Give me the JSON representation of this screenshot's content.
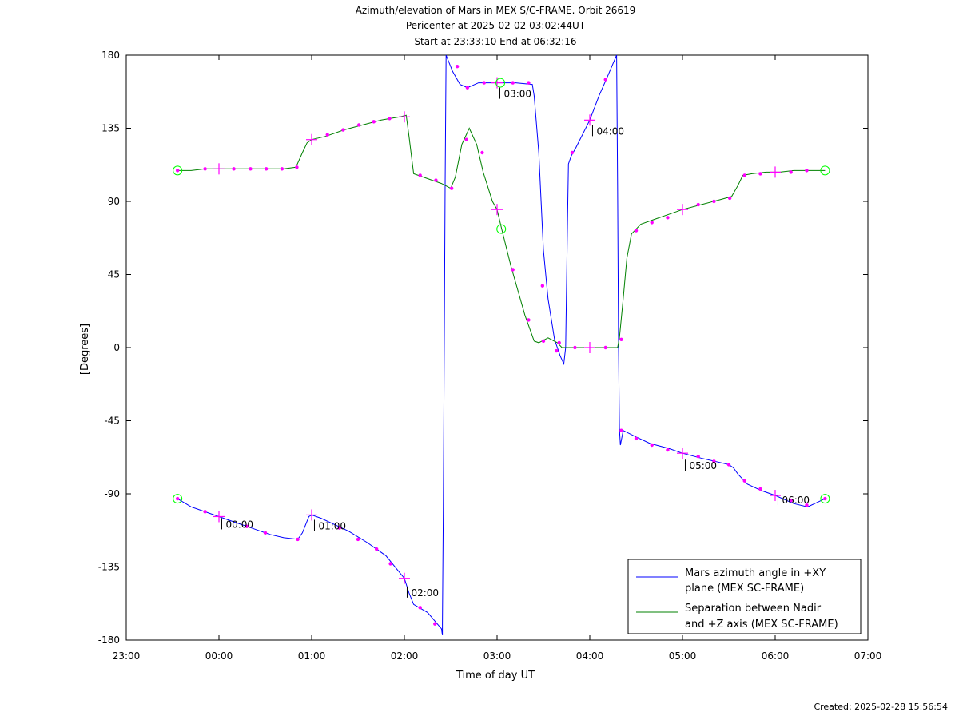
{
  "chart_data": {
    "type": "line",
    "title_lines": [
      "Azimuth/elevation of Mars in MEX S/C-FRAME.  Orbit 26619",
      "Pericenter at 2025-02-02 03:02:44UT",
      "Start at 23:33:10 End at 06:32:16"
    ],
    "xlabel": "Time of day UT",
    "ylabel": "[Degrees]",
    "x_ticks": [
      "23:00",
      "00:00",
      "01:00",
      "02:00",
      "03:00",
      "04:00",
      "05:00",
      "06:00",
      "07:00"
    ],
    "y_ticks": [
      180,
      135,
      90,
      45,
      0,
      -45,
      -90,
      -135,
      -180
    ],
    "xlim_hours": [
      23.0,
      31.0
    ],
    "ylim": [
      -180,
      180
    ],
    "grid": false,
    "legend_position": "bottom-right",
    "series": [
      {
        "name": "Mars azimuth angle in +XY plane (MEX SC-FRAME)",
        "color": "#0000ff",
        "points": [
          [
            23.553,
            -93
          ],
          [
            23.7,
            -98
          ],
          [
            23.85,
            -101
          ],
          [
            24.0,
            -104
          ],
          [
            24.15,
            -107
          ],
          [
            24.35,
            -111
          ],
          [
            24.55,
            -115
          ],
          [
            24.7,
            -117
          ],
          [
            24.85,
            -118
          ],
          [
            24.9,
            -114
          ],
          [
            24.97,
            -104
          ],
          [
            25.0,
            -103
          ],
          [
            25.1,
            -105
          ],
          [
            25.25,
            -109
          ],
          [
            25.4,
            -113
          ],
          [
            25.6,
            -120
          ],
          [
            25.8,
            -128
          ],
          [
            26.0,
            -142
          ],
          [
            26.05,
            -151
          ],
          [
            26.1,
            -158
          ],
          [
            26.25,
            -163
          ],
          [
            26.4,
            -173
          ],
          [
            26.41,
            -177
          ],
          [
            26.41,
            -170
          ],
          [
            26.42,
            -100
          ],
          [
            26.43,
            0
          ],
          [
            26.44,
            100
          ],
          [
            26.45,
            180
          ],
          [
            26.52,
            170
          ],
          [
            26.6,
            162
          ],
          [
            26.68,
            160
          ],
          [
            26.8,
            163
          ],
          [
            27.0,
            163
          ],
          [
            27.2,
            163
          ],
          [
            27.38,
            162
          ],
          [
            27.4,
            155
          ],
          [
            27.45,
            120
          ],
          [
            27.5,
            60
          ],
          [
            27.55,
            30
          ],
          [
            27.62,
            5
          ],
          [
            27.68,
            -5
          ],
          [
            27.72,
            -10
          ],
          [
            27.74,
            0
          ],
          [
            27.76,
            80
          ],
          [
            27.77,
            113
          ],
          [
            27.8,
            118
          ],
          [
            27.85,
            123
          ],
          [
            28.0,
            140
          ],
          [
            28.1,
            155
          ],
          [
            28.2,
            168
          ],
          [
            28.29,
            180
          ],
          [
            28.3,
            100
          ],
          [
            28.31,
            0
          ],
          [
            28.32,
            -50
          ],
          [
            28.33,
            -60
          ],
          [
            28.36,
            -51
          ],
          [
            28.5,
            -55
          ],
          [
            28.65,
            -59
          ],
          [
            28.85,
            -62
          ],
          [
            29.0,
            -65
          ],
          [
            29.2,
            -68
          ],
          [
            29.35,
            -70
          ],
          [
            29.5,
            -72
          ],
          [
            29.55,
            -74
          ],
          [
            29.6,
            -78
          ],
          [
            29.7,
            -84
          ],
          [
            29.85,
            -88
          ],
          [
            30.0,
            -91
          ],
          [
            30.2,
            -96
          ],
          [
            30.35,
            -98
          ],
          [
            30.538,
            -93
          ]
        ]
      },
      {
        "name": "Separation between Nadir and +Z axis (MEX SC-FRAME)",
        "color": "#008000",
        "points": [
          [
            23.553,
            109
          ],
          [
            23.7,
            109
          ],
          [
            23.85,
            110
          ],
          [
            24.0,
            110
          ],
          [
            24.15,
            110
          ],
          [
            24.35,
            110
          ],
          [
            24.55,
            110
          ],
          [
            24.7,
            110
          ],
          [
            24.83,
            111
          ],
          [
            24.9,
            120
          ],
          [
            24.95,
            126
          ],
          [
            25.0,
            128
          ],
          [
            25.15,
            130
          ],
          [
            25.35,
            134
          ],
          [
            25.55,
            137
          ],
          [
            25.75,
            140
          ],
          [
            25.95,
            142
          ],
          [
            26.02,
            143
          ],
          [
            26.05,
            130
          ],
          [
            26.1,
            107
          ],
          [
            26.25,
            104
          ],
          [
            26.4,
            101
          ],
          [
            26.5,
            98
          ],
          [
            26.55,
            105
          ],
          [
            26.62,
            125
          ],
          [
            26.7,
            135
          ],
          [
            26.78,
            125
          ],
          [
            26.85,
            108
          ],
          [
            26.95,
            90
          ],
          [
            27.0,
            85
          ],
          [
            27.05,
            73
          ],
          [
            27.15,
            50
          ],
          [
            27.3,
            20
          ],
          [
            27.4,
            4
          ],
          [
            27.45,
            3
          ],
          [
            27.55,
            6
          ],
          [
            27.65,
            3
          ],
          [
            27.7,
            0
          ],
          [
            28.0,
            0
          ],
          [
            28.3,
            0
          ],
          [
            28.32,
            6
          ],
          [
            28.36,
            30
          ],
          [
            28.4,
            55
          ],
          [
            28.45,
            70
          ],
          [
            28.55,
            76
          ],
          [
            28.7,
            79
          ],
          [
            28.85,
            82
          ],
          [
            29.0,
            85
          ],
          [
            29.2,
            88
          ],
          [
            29.4,
            91
          ],
          [
            29.53,
            93
          ],
          [
            29.6,
            100
          ],
          [
            29.65,
            106
          ],
          [
            29.75,
            107
          ],
          [
            29.9,
            108
          ],
          [
            30.05,
            108
          ],
          [
            30.2,
            109
          ],
          [
            30.35,
            109
          ],
          [
            30.538,
            109
          ]
        ]
      }
    ],
    "small_markers": [
      [
        23.553,
        -93
      ],
      [
        23.85,
        -101
      ],
      [
        24.3,
        -110
      ],
      [
        24.5,
        -114
      ],
      [
        24.85,
        -118
      ],
      [
        25.3,
        -111
      ],
      [
        25.5,
        -118
      ],
      [
        25.7,
        -124
      ],
      [
        25.85,
        -133
      ],
      [
        26.17,
        -160
      ],
      [
        26.33,
        -170
      ],
      [
        26.57,
        173
      ],
      [
        26.68,
        160
      ],
      [
        26.86,
        163
      ],
      [
        27.17,
        163
      ],
      [
        27.34,
        163
      ],
      [
        27.49,
        38
      ],
      [
        27.64,
        -2
      ],
      [
        27.81,
        120
      ],
      [
        28.17,
        165
      ],
      [
        28.34,
        -51
      ],
      [
        28.5,
        -56
      ],
      [
        28.67,
        -60
      ],
      [
        28.84,
        -63
      ],
      [
        29.17,
        -67
      ],
      [
        29.34,
        -70
      ],
      [
        29.5,
        -72
      ],
      [
        29.67,
        -82
      ],
      [
        29.84,
        -87
      ],
      [
        30.17,
        -94
      ],
      [
        30.34,
        -97
      ],
      [
        30.538,
        -93
      ],
      [
        23.553,
        109
      ],
      [
        23.85,
        110
      ],
      [
        24.16,
        110
      ],
      [
        24.34,
        110
      ],
      [
        24.51,
        110
      ],
      [
        24.68,
        110
      ],
      [
        24.84,
        111
      ],
      [
        25.17,
        131
      ],
      [
        25.34,
        134
      ],
      [
        25.51,
        137
      ],
      [
        25.67,
        139
      ],
      [
        25.84,
        141
      ],
      [
        26.17,
        106
      ],
      [
        26.34,
        103
      ],
      [
        26.51,
        98
      ],
      [
        26.67,
        128
      ],
      [
        26.84,
        120
      ],
      [
        27.17,
        48
      ],
      [
        27.34,
        17
      ],
      [
        27.5,
        4
      ],
      [
        27.67,
        3
      ],
      [
        27.84,
        0
      ],
      [
        28.17,
        0
      ],
      [
        28.34,
        5
      ],
      [
        28.5,
        72
      ],
      [
        28.67,
        77
      ],
      [
        28.84,
        80
      ],
      [
        29.17,
        88
      ],
      [
        29.34,
        90
      ],
      [
        29.51,
        92
      ],
      [
        29.67,
        106
      ],
      [
        29.84,
        107
      ],
      [
        30.17,
        108
      ],
      [
        30.34,
        109
      ]
    ],
    "hour_markers": [
      [
        24.0,
        -104
      ],
      [
        25.0,
        -103
      ],
      [
        26.0,
        -142
      ],
      [
        27.0,
        163
      ],
      [
        28.0,
        140
      ],
      [
        29.0,
        -65
      ],
      [
        30.0,
        -91
      ],
      [
        24.0,
        110
      ],
      [
        25.0,
        128
      ],
      [
        26.0,
        142
      ],
      [
        27.0,
        85
      ],
      [
        28.0,
        0
      ],
      [
        29.0,
        85
      ],
      [
        30.0,
        108
      ]
    ],
    "endpoint_circles": [
      [
        23.553,
        -93
      ],
      [
        30.538,
        -93
      ],
      [
        23.553,
        109
      ],
      [
        30.538,
        109
      ],
      [
        27.035,
        163
      ],
      [
        27.045,
        73
      ]
    ],
    "time_annotations": [
      {
        "t": 24.03,
        "v": -103,
        "label": "00:00"
      },
      {
        "t": 25.03,
        "v": -104,
        "label": "01:00"
      },
      {
        "t": 26.03,
        "v": -145,
        "label": "02:00"
      },
      {
        "t": 27.03,
        "v": 162,
        "label": "03:00"
      },
      {
        "t": 28.03,
        "v": 139,
        "label": "04:00"
      },
      {
        "t": 29.03,
        "v": -67,
        "label": "05:00"
      },
      {
        "t": 30.03,
        "v": -88,
        "label": "06:00"
      }
    ],
    "legend_lines": [
      [
        "Mars azimuth angle in +XY",
        "plane (MEX SC-FRAME)"
      ],
      [
        "Separation between Nadir",
        "and +Z axis (MEX SC-FRAME)"
      ]
    ],
    "colors": {
      "azimuth": "#0000ff",
      "separation": "#008000",
      "markers": "#ff00ff",
      "endpoints": "#00ff00"
    }
  },
  "footer": {
    "created": "Created: 2025-02-28 15:56:54"
  }
}
